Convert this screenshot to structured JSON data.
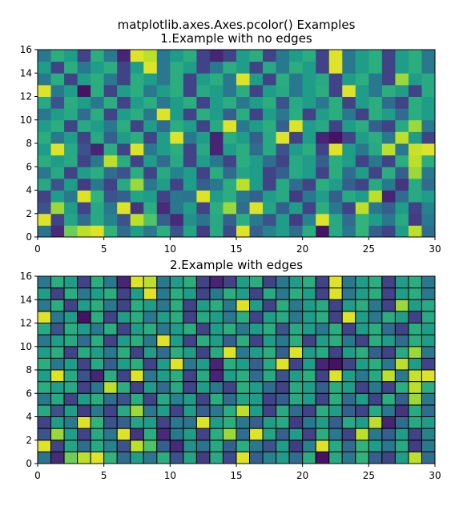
{
  "figure": {
    "suptitle": "matplotlib.axes.Axes.pcolor() Examples"
  },
  "chart_data": [
    {
      "type": "heatmap",
      "title": "1.Example with no edges",
      "xlabel": "",
      "ylabel": "",
      "xlim": [
        0,
        30
      ],
      "ylim": [
        0,
        16
      ],
      "xticks": [
        0,
        5,
        10,
        15,
        20,
        25,
        30
      ],
      "yticks": [
        0,
        2,
        4,
        6,
        8,
        10,
        12,
        14,
        16
      ],
      "colormap": "viridis",
      "edges": false,
      "grid": false,
      "values_note_rows": "rows listed bottom (y=0) to top (y=16), 30 columns each, values 0-1",
      "values": []
    },
    {
      "type": "heatmap",
      "title": "2.Example with edges",
      "xlabel": "",
      "ylabel": "",
      "xlim": [
        0,
        30
      ],
      "ylim": [
        0,
        16
      ],
      "xticks": [
        0,
        5,
        10,
        15,
        20,
        25,
        30
      ],
      "yticks": [
        0,
        2,
        4,
        6,
        8,
        10,
        12,
        14,
        16
      ],
      "colormap": "viridis",
      "edges": true,
      "edgecolor": "#000000",
      "grid": false,
      "values": []
    }
  ],
  "heat": [
    [
      0.38,
      0.12,
      0.78,
      0.9,
      0.95,
      0.65,
      0.35,
      0.55,
      0.4,
      0.62,
      0.25,
      0.58,
      0.18,
      0.6,
      0.22,
      0.95,
      0.3,
      0.45,
      0.55,
      0.35,
      0.62,
      0.05,
      0.6,
      0.4,
      0.65,
      0.3,
      0.2,
      0.55,
      0.9,
      0.35
    ],
    [
      0.95,
      0.2,
      0.58,
      0.35,
      0.6,
      0.45,
      0.25,
      0.9,
      0.72,
      0.3,
      0.12,
      0.5,
      0.38,
      0.6,
      0.3,
      0.62,
      0.4,
      0.25,
      0.55,
      0.18,
      0.45,
      0.95,
      0.6,
      0.35,
      0.65,
      0.55,
      0.4,
      0.6,
      0.18,
      0.4
    ],
    [
      0.25,
      0.85,
      0.55,
      0.2,
      0.6,
      0.4,
      0.95,
      0.15,
      0.62,
      0.12,
      0.4,
      0.55,
      0.2,
      0.62,
      0.85,
      0.35,
      0.95,
      0.58,
      0.3,
      0.55,
      0.2,
      0.62,
      0.4,
      0.2,
      0.9,
      0.4,
      0.3,
      0.55,
      0.2,
      0.45
    ],
    [
      0.2,
      0.55,
      0.4,
      0.95,
      0.65,
      0.25,
      0.3,
      0.58,
      0.55,
      0.2,
      0.4,
      0.38,
      0.95,
      0.55,
      0.62,
      0.4,
      0.3,
      0.55,
      0.6,
      0.18,
      0.4,
      0.55,
      0.3,
      0.6,
      0.55,
      0.9,
      0.1,
      0.35,
      0.6,
      0.55
    ],
    [
      0.6,
      0.25,
      0.55,
      0.18,
      0.4,
      0.2,
      0.6,
      0.85,
      0.4,
      0.55,
      0.2,
      0.55,
      0.3,
      0.4,
      0.62,
      0.9,
      0.55,
      0.2,
      0.6,
      0.35,
      0.2,
      0.62,
      0.55,
      0.3,
      0.2,
      0.6,
      0.4,
      0.15,
      0.6,
      0.35
    ],
    [
      0.4,
      0.6,
      0.2,
      0.55,
      0.62,
      0.35,
      0.25,
      0.62,
      0.2,
      0.6,
      0.45,
      0.55,
      0.2,
      0.62,
      0.35,
      0.58,
      0.55,
      0.2,
      0.3,
      0.6,
      0.55,
      0.2,
      0.62,
      0.35,
      0.55,
      0.2,
      0.62,
      0.3,
      0.85,
      0.4
    ],
    [
      0.62,
      0.55,
      0.6,
      0.2,
      0.4,
      0.9,
      0.62,
      0.2,
      0.55,
      0.35,
      0.6,
      0.2,
      0.55,
      0.4,
      0.2,
      0.62,
      0.55,
      0.35,
      0.2,
      0.6,
      0.55,
      0.3,
      0.62,
      0.55,
      0.2,
      0.4,
      0.2,
      0.62,
      0.9,
      0.62
    ],
    [
      0.55,
      0.95,
      0.6,
      0.25,
      0.1,
      0.62,
      0.2,
      0.95,
      0.4,
      0.55,
      0.62,
      0.2,
      0.6,
      0.1,
      0.55,
      0.62,
      0.35,
      0.6,
      0.25,
      0.55,
      0.62,
      0.2,
      0.95,
      0.55,
      0.4,
      0.6,
      0.9,
      0.4,
      0.92,
      0.95
    ],
    [
      0.62,
      0.4,
      0.55,
      0.2,
      0.6,
      0.3,
      0.55,
      0.62,
      0.2,
      0.55,
      0.95,
      0.4,
      0.55,
      0.1,
      0.62,
      0.55,
      0.3,
      0.6,
      0.95,
      0.2,
      0.55,
      0.1,
      0.05,
      0.2,
      0.55,
      0.62,
      0.4,
      0.9,
      0.55,
      0.2
    ],
    [
      0.55,
      0.62,
      0.2,
      0.6,
      0.55,
      0.4,
      0.62,
      0.2,
      0.55,
      0.35,
      0.62,
      0.55,
      0.2,
      0.6,
      0.95,
      0.4,
      0.55,
      0.62,
      0.3,
      0.95,
      0.55,
      0.6,
      0.2,
      0.55,
      0.62,
      0.3,
      0.2,
      0.6,
      0.85,
      0.4
    ],
    [
      0.4,
      0.55,
      0.6,
      0.35,
      0.62,
      0.2,
      0.55,
      0.62,
      0.4,
      0.95,
      0.55,
      0.2,
      0.62,
      0.55,
      0.3,
      0.62,
      0.2,
      0.55,
      0.4,
      0.62,
      0.2,
      0.55,
      0.62,
      0.4,
      0.2,
      0.62,
      0.55,
      0.35,
      0.62,
      0.55
    ],
    [
      0.6,
      0.25,
      0.62,
      0.55,
      0.4,
      0.62,
      0.2,
      0.55,
      0.62,
      0.4,
      0.55,
      0.62,
      0.2,
      0.55,
      0.62,
      0.4,
      0.55,
      0.62,
      0.25,
      0.6,
      0.55,
      0.4,
      0.62,
      0.2,
      0.55,
      0.62,
      0.35,
      0.2,
      0.62,
      0.55
    ],
    [
      0.95,
      0.4,
      0.55,
      0.05,
      0.62,
      0.2,
      0.55,
      0.62,
      0.4,
      0.55,
      0.62,
      0.2,
      0.6,
      0.55,
      0.4,
      0.62,
      0.2,
      0.55,
      0.6,
      0.4,
      0.55,
      0.62,
      0.2,
      0.95,
      0.55,
      0.4,
      0.62,
      0.55,
      0.2,
      0.6
    ],
    [
      0.4,
      0.62,
      0.2,
      0.55,
      0.62,
      0.4,
      0.2,
      0.62,
      0.55,
      0.4,
      0.62,
      0.2,
      0.55,
      0.62,
      0.4,
      0.95,
      0.55,
      0.2,
      0.62,
      0.4,
      0.55,
      0.6,
      0.2,
      0.55,
      0.62,
      0.4,
      0.2,
      0.85,
      0.55,
      0.6
    ],
    [
      0.55,
      0.2,
      0.62,
      0.4,
      0.55,
      0.62,
      0.2,
      0.55,
      0.95,
      0.4,
      0.62,
      0.55,
      0.2,
      0.4,
      0.62,
      0.55,
      0.2,
      0.6,
      0.4,
      0.62,
      0.55,
      0.2,
      0.95,
      0.4,
      0.55,
      0.62,
      0.2,
      0.55,
      0.62,
      0.4
    ],
    [
      0.4,
      0.62,
      0.55,
      0.2,
      0.62,
      0.4,
      0.1,
      0.95,
      0.9,
      0.4,
      0.55,
      0.62,
      0.2,
      0.1,
      0.2,
      0.55,
      0.62,
      0.2,
      0.4,
      0.55,
      0.62,
      0.2,
      0.95,
      0.4,
      0.55,
      0.62,
      0.2,
      0.55,
      0.62,
      0.4
    ]
  ]
}
